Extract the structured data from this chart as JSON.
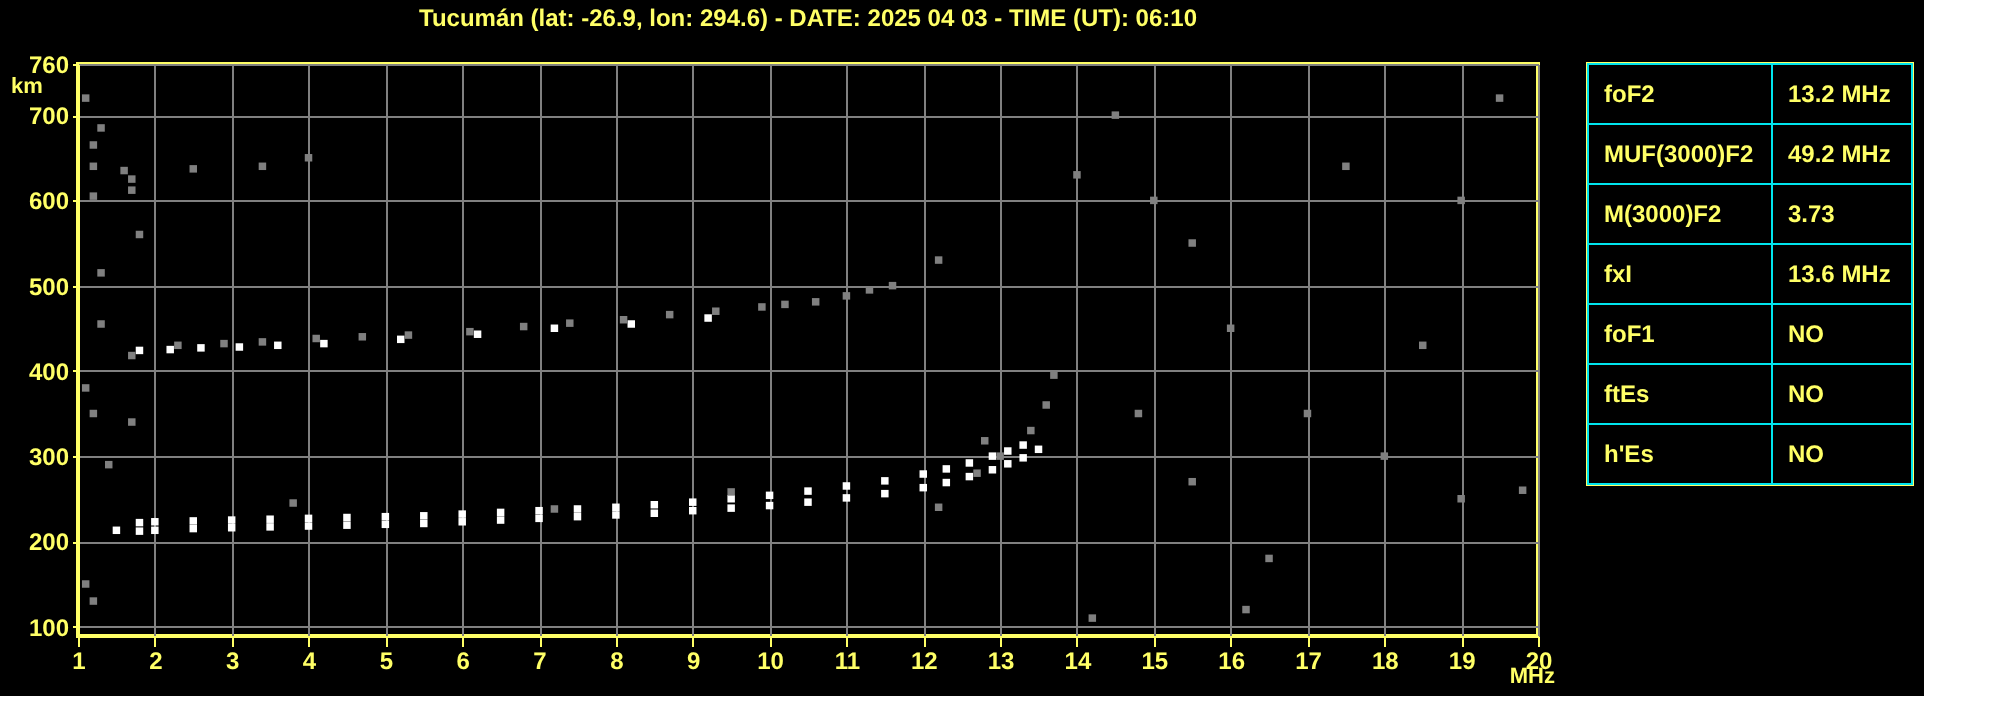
{
  "chart_data": [
    {
      "type": "scatter",
      "title": "Tucumán (lat: -26.9, lon: 294.6) - DATE: 2025 04 03 - TIME (UT): 06:10",
      "xlabel": "MHz",
      "ylabel": "km",
      "xlim": [
        1,
        20
      ],
      "ylim": [
        89,
        760
      ],
      "xticks": [
        1,
        2,
        3,
        4,
        5,
        6,
        7,
        8,
        9,
        10,
        11,
        12,
        13,
        14,
        15,
        16,
        17,
        18,
        19,
        20
      ],
      "yticks": [
        100,
        200,
        300,
        400,
        500,
        600,
        700,
        760
      ],
      "grid": true,
      "legend": false,
      "marker": "square",
      "series": [
        {
          "color": "#ffffff",
          "x": [
            1.5,
            1.8,
            2,
            2.5,
            3,
            3.5,
            4,
            4.5,
            5,
            5.5,
            6,
            6.5,
            7,
            7.5,
            8,
            8.5,
            9,
            9.5,
            10,
            10.5,
            11,
            11.5,
            12,
            12.3,
            12.6,
            12.9,
            13.1,
            13.3,
            13.5,
            1.8,
            2,
            2.5,
            3,
            3.5,
            4,
            4.5,
            5,
            5.5,
            6,
            6.5,
            7,
            7.5,
            8,
            8.5,
            9,
            9.5,
            10,
            10.5,
            11,
            11.5,
            12,
            12.3,
            12.6,
            12.9,
            13.1,
            13.3,
            1.8,
            2.2,
            2.6,
            3.1,
            3.6,
            4.2,
            5.2,
            6.2,
            7.2,
            8.2,
            9.2
          ],
          "values": [
            213,
            212,
            213,
            215,
            216,
            217,
            218,
            219,
            220,
            221,
            223,
            225,
            227,
            229,
            231,
            233,
            236,
            239,
            242,
            246,
            251,
            256,
            263,
            269,
            276,
            284,
            291,
            298,
            308,
            222,
            223,
            224,
            225,
            226,
            227,
            228,
            229,
            230,
            232,
            234,
            236,
            238,
            240,
            243,
            246,
            250,
            254,
            259,
            265,
            271,
            279,
            285,
            292,
            300,
            306,
            313,
            424,
            425,
            427,
            428,
            430,
            432,
            437,
            443,
            450,
            455,
            462
          ]
        },
        {
          "color": "#808080",
          "x": [
            1.7,
            2.3,
            2.9,
            3.4,
            4.1,
            4.7,
            5.3,
            6.1,
            6.8,
            7.4,
            8.1,
            8.7,
            9.3,
            9.9,
            10.2,
            10.6,
            11,
            11.3,
            11.6,
            12.2,
            12.7,
            13.0,
            13.4,
            13.6,
            13.7,
            1.1,
            1.3,
            1.2,
            1.2,
            1.2,
            1.6,
            1.7,
            1.7,
            1.8,
            1.3,
            1.3,
            2.5,
            3.4,
            4,
            14,
            14.5,
            15,
            15.5,
            16,
            17,
            18,
            19,
            19.8,
            19.5,
            16.5,
            14.2,
            1.1,
            1.2,
            1.4,
            1.7,
            1.1,
            12.2,
            15.5,
            18.5,
            17.5,
            19,
            14.8,
            16.2,
            1.2,
            3.8,
            7.2,
            9.5,
            12.8
          ],
          "values": [
            418,
            430,
            432,
            434,
            438,
            440,
            442,
            446,
            452,
            456,
            460,
            466,
            470,
            475,
            478,
            481,
            488,
            495,
            500,
            240,
            280,
            300,
            330,
            360,
            395,
            720,
            685,
            665,
            640,
            605,
            635,
            625,
            612,
            560,
            515,
            455,
            637,
            640,
            650,
            630,
            700,
            600,
            550,
            450,
            350,
            300,
            250,
            260,
            720,
            180,
            110,
            150,
            130,
            290,
            340,
            380,
            530,
            270,
            430,
            640,
            600,
            350,
            120,
            350,
            245,
            238,
            258,
            318
          ]
        }
      ]
    },
    {
      "type": "other",
      "categories": [
        "foF2",
        "MUF(3000)F2",
        "M(3000)F2",
        "fxI",
        "foF1",
        "ftEs",
        "h'Es"
      ],
      "value_labels": [
        "13.2 MHz",
        "49.2 MHz",
        "3.73",
        "13.6 MHz",
        "NO",
        "NO",
        "NO"
      ],
      "color": "#00e5ee"
    }
  ]
}
